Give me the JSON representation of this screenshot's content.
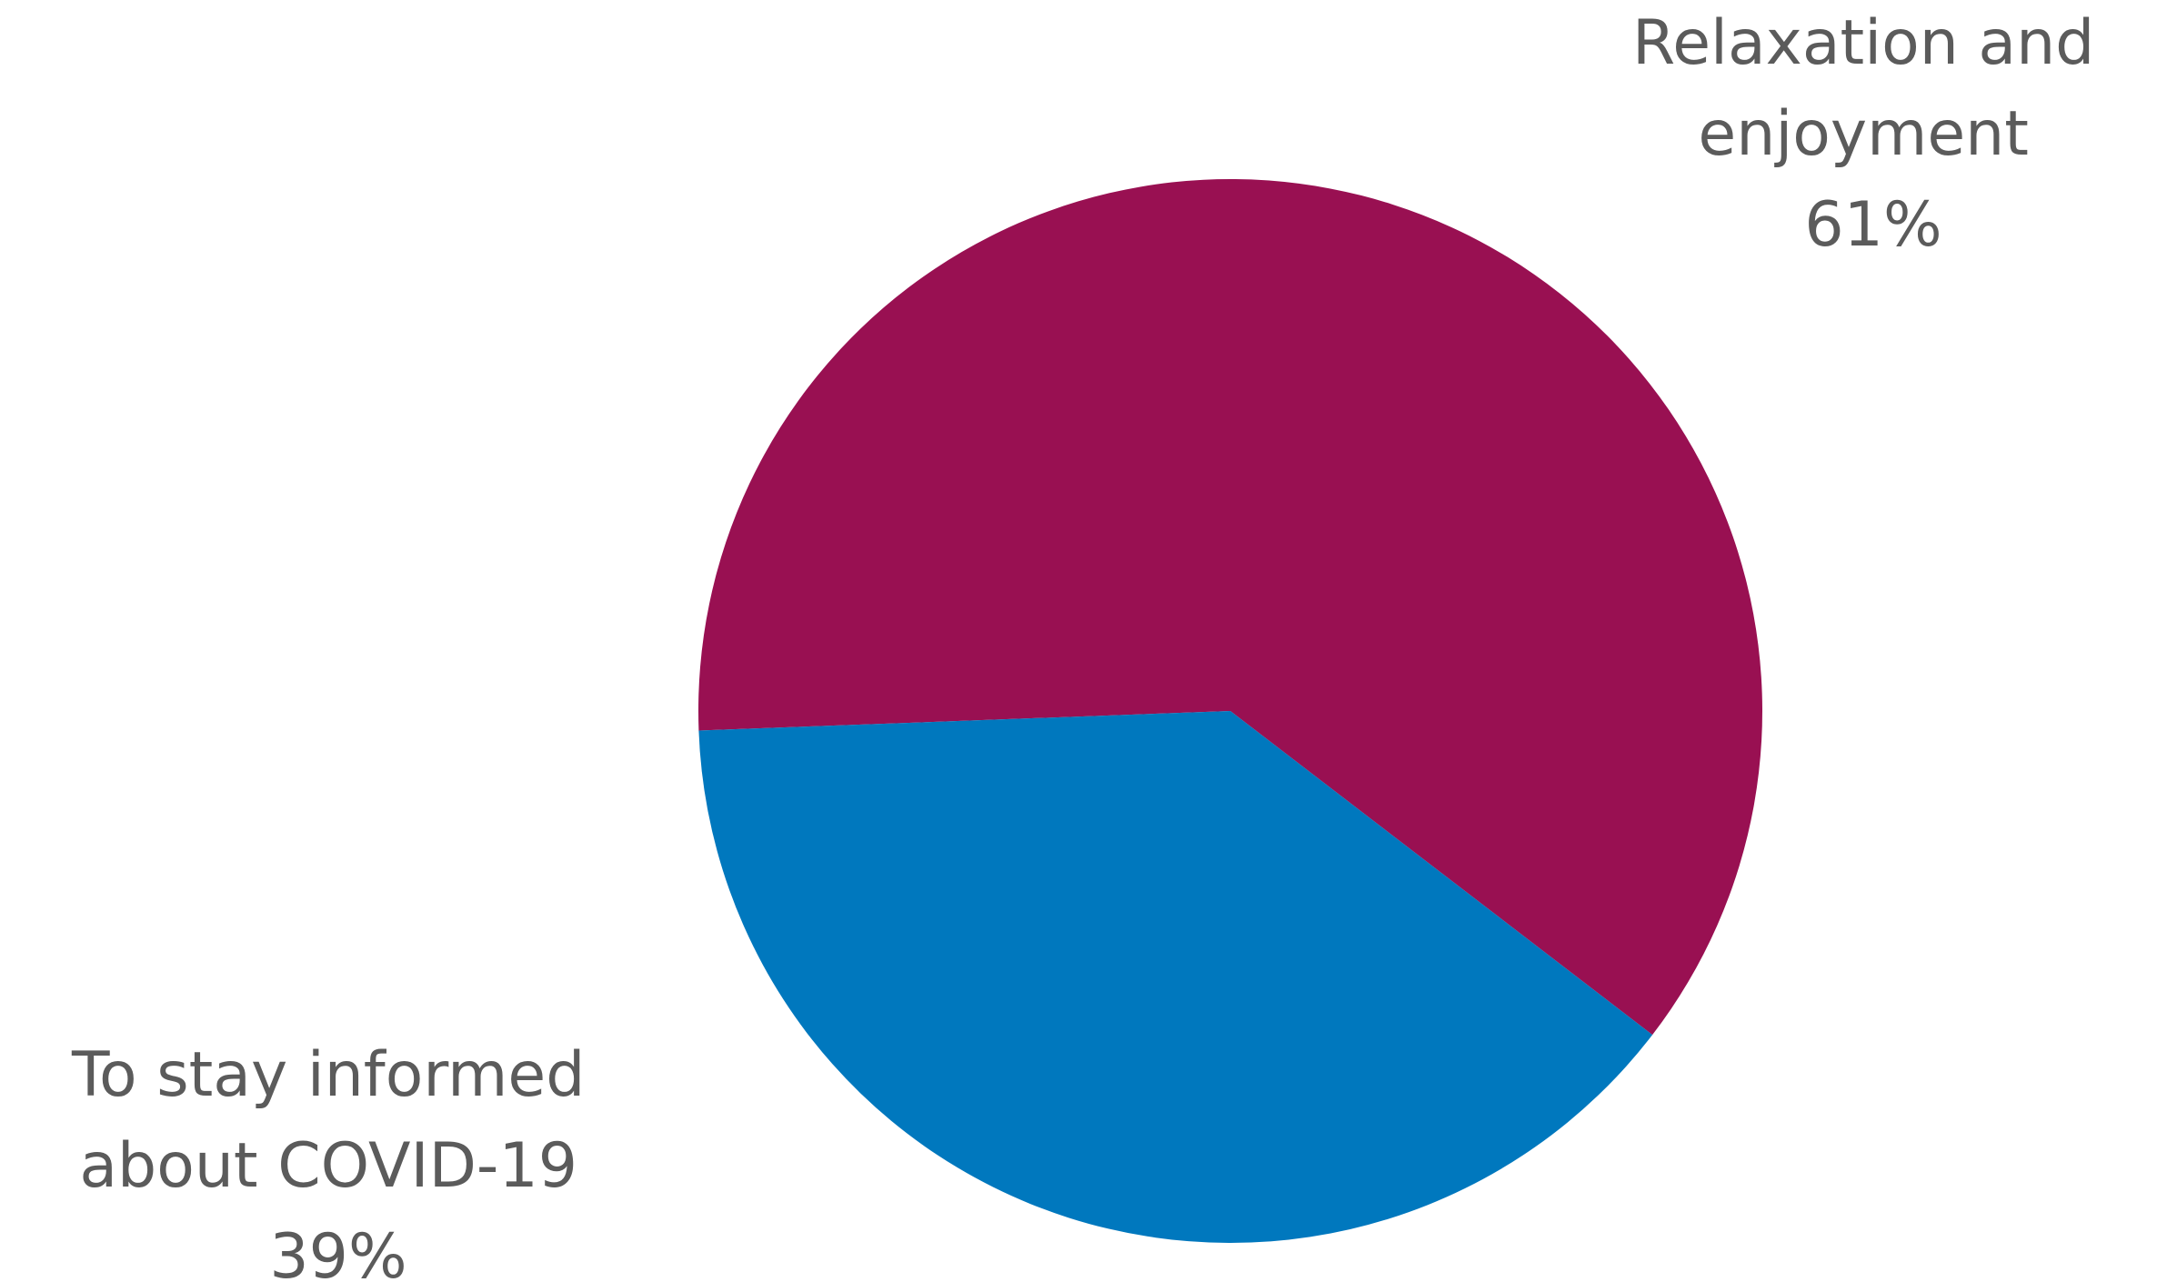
{
  "chart_data": {
    "type": "pie",
    "slices": [
      {
        "label_lines": [
          "Relaxation and",
          "enjoyment"
        ],
        "value": 61,
        "value_label": "61%",
        "color": "#991052"
      },
      {
        "label_lines": [
          "To stay informed",
          "about COVID-19"
        ],
        "value": 39,
        "value_label": "39%",
        "color": "#0078BE"
      }
    ]
  }
}
